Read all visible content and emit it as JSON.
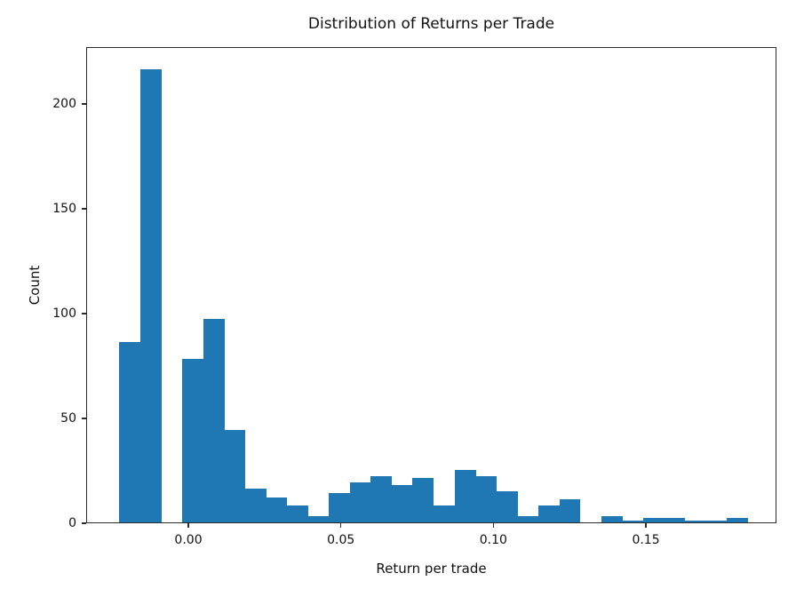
{
  "chart_data": {
    "type": "bar",
    "subtype": "histogram",
    "title": "Distribution of Returns per Trade",
    "xlabel": "Return per trade",
    "ylabel": "Count",
    "bar_color": "#1f77b4",
    "grid": false,
    "legend": null,
    "bin_start": -0.0229,
    "bin_width": 0.006867,
    "counts": [
      86,
      216,
      0,
      78,
      97,
      44,
      16,
      12,
      8,
      3,
      14,
      19,
      22,
      18,
      21,
      8,
      25,
      22,
      15,
      3,
      8,
      11,
      0,
      3,
      1,
      2,
      2,
      1,
      1,
      2
    ],
    "xlim": [
      -0.0335,
      0.1928
    ],
    "ylim": [
      0,
      227
    ],
    "xticks": {
      "values": [
        0.0,
        0.05,
        0.1,
        0.15
      ],
      "labels": [
        "0.00",
        "0.05",
        "0.10",
        "0.15"
      ]
    },
    "yticks": {
      "values": [
        0,
        50,
        100,
        150,
        200
      ],
      "labels": [
        "0",
        "50",
        "100",
        "150",
        "200"
      ]
    }
  }
}
